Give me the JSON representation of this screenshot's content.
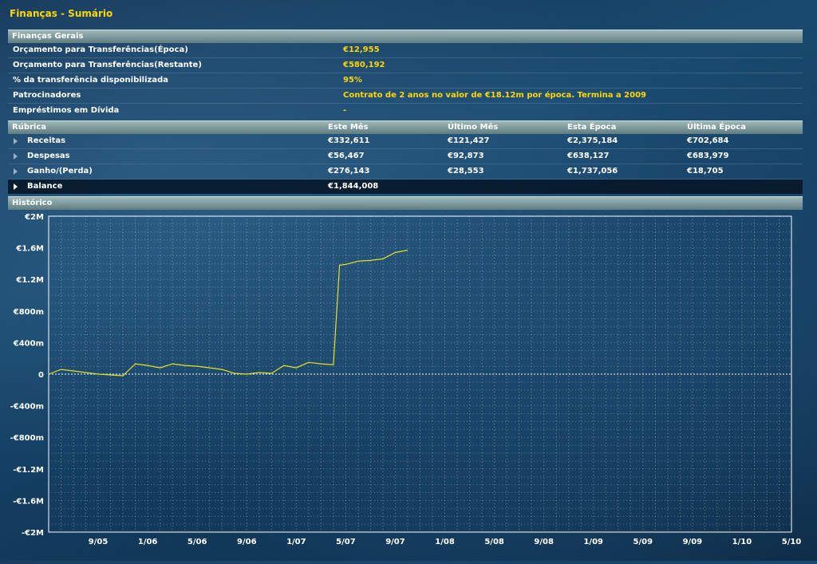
{
  "page_title": "Finanças - Sumário",
  "general": {
    "header": "Finanças Gerais",
    "rows": [
      {
        "label": "Orçamento para Transferências(Época)",
        "value": "€12,955"
      },
      {
        "label": "Orçamento para Transferências(Restante)",
        "value": "€580,192"
      },
      {
        "label": "% da transferência disponibilizada",
        "value": "95%"
      },
      {
        "label": "Patrocinadores",
        "value": "Contrato de 2 anos no valor de €18.12m por época. Termina a 2009"
      },
      {
        "label": "Empréstimos em Dívida",
        "value": "-"
      }
    ]
  },
  "table": {
    "headers": [
      "Rúbrica",
      "Este Mês",
      "Último Mês",
      "Esta Época",
      "Última Época"
    ],
    "rows": [
      {
        "label": "Receitas",
        "cells": [
          "€332,611",
          "€121,427",
          "€2,375,184",
          "€702,684"
        ]
      },
      {
        "label": "Despesas",
        "cells": [
          "€56,467",
          "€92,873",
          "€638,127",
          "€683,979"
        ]
      },
      {
        "label": "Ganho/(Perda)",
        "cells": [
          "€276,143",
          "€28,553",
          "€1,737,056",
          "€18,705"
        ]
      },
      {
        "label": "Balance",
        "cells": [
          "€1,844,008",
          "",
          "",
          ""
        ]
      }
    ]
  },
  "history": {
    "header": "Histórico"
  },
  "colors": {
    "accent": "#ffd700",
    "line": "#e8e020"
  },
  "chart_data": {
    "type": "line",
    "ylim": [
      -2000000,
      2000000
    ],
    "y_ticks": [
      {
        "v": 2000000,
        "label": "€2M"
      },
      {
        "v": 1600000,
        "label": "€1.6M"
      },
      {
        "v": 1200000,
        "label": "€1.2M"
      },
      {
        "v": 800000,
        "label": "€800m"
      },
      {
        "v": 400000,
        "label": "€400m"
      },
      {
        "v": 0,
        "label": "0"
      },
      {
        "v": -400000,
        "label": "-€400m"
      },
      {
        "v": -800000,
        "label": "-€800m"
      },
      {
        "v": -1200000,
        "label": "-€1.2M"
      },
      {
        "v": -1600000,
        "label": "-€1.6M"
      },
      {
        "v": -2000000,
        "label": "-€2M"
      }
    ],
    "x_ticks": [
      {
        "i": 4,
        "label": "9/05"
      },
      {
        "i": 8,
        "label": "1/06"
      },
      {
        "i": 12,
        "label": "5/06"
      },
      {
        "i": 16,
        "label": "9/06"
      },
      {
        "i": 20,
        "label": "1/07"
      },
      {
        "i": 24,
        "label": "5/07"
      },
      {
        "i": 28,
        "label": "9/07"
      },
      {
        "i": 32,
        "label": "1/08"
      },
      {
        "i": 36,
        "label": "5/08"
      },
      {
        "i": 40,
        "label": "9/08"
      },
      {
        "i": 44,
        "label": "1/09"
      },
      {
        "i": 48,
        "label": "5/09"
      },
      {
        "i": 52,
        "label": "9/09"
      },
      {
        "i": 56,
        "label": "1/10"
      },
      {
        "i": 60,
        "label": "5/10"
      }
    ],
    "x_max_index": 60,
    "series": [
      {
        "values": [
          [
            0,
            0
          ],
          [
            1,
            60000
          ],
          [
            2,
            40000
          ],
          [
            3,
            20000
          ],
          [
            4,
            0
          ],
          [
            5,
            -10000
          ],
          [
            6,
            -20000
          ],
          [
            7,
            130000
          ],
          [
            8,
            110000
          ],
          [
            9,
            80000
          ],
          [
            10,
            130000
          ],
          [
            11,
            110000
          ],
          [
            12,
            100000
          ],
          [
            13,
            80000
          ],
          [
            14,
            60000
          ],
          [
            15,
            10000
          ],
          [
            16,
            0
          ],
          [
            17,
            20000
          ],
          [
            18,
            10000
          ],
          [
            19,
            110000
          ],
          [
            20,
            80000
          ],
          [
            21,
            150000
          ],
          [
            22,
            130000
          ],
          [
            23,
            120000
          ],
          [
            23.5,
            1380000
          ],
          [
            24,
            1390000
          ],
          [
            25,
            1430000
          ],
          [
            26,
            1440000
          ],
          [
            27,
            1460000
          ],
          [
            28,
            1540000
          ],
          [
            29,
            1570000
          ]
        ]
      }
    ]
  }
}
